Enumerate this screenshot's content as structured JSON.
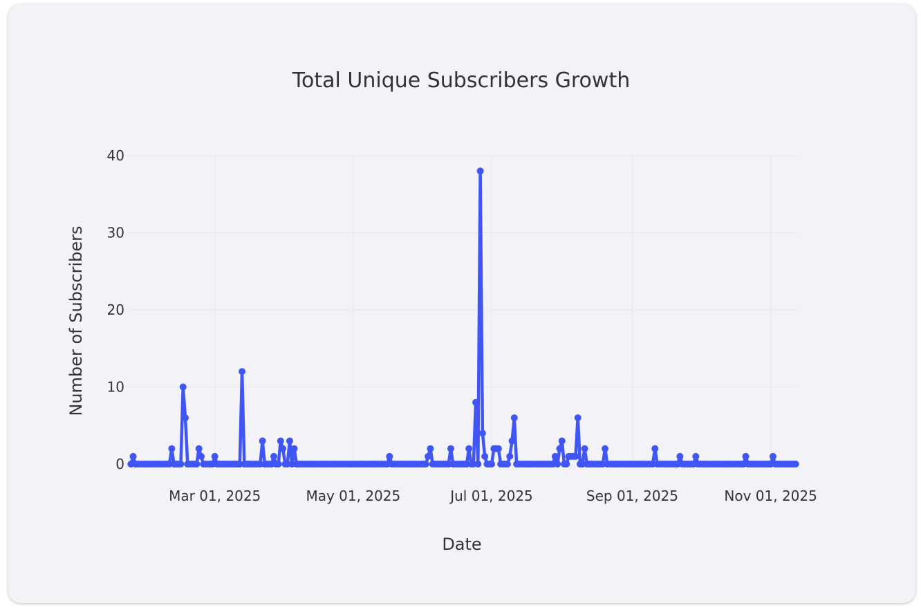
{
  "chart_data": {
    "type": "line",
    "title": "Total Unique Subscribers Growth",
    "xlabel": "Date",
    "ylabel": "Number of Subscribers",
    "x_range": [
      "2025-01-22",
      "2025-11-13"
    ],
    "ylim": [
      0,
      40
    ],
    "y_ticks": [
      0,
      10,
      20,
      30,
      40
    ],
    "x_ticks": [
      {
        "date": "2025-03-01",
        "label": "Mar 01, 2025"
      },
      {
        "date": "2025-05-01",
        "label": "May 01, 2025"
      },
      {
        "date": "2025-07-01",
        "label": "Jul 01, 2025"
      },
      {
        "date": "2025-09-01",
        "label": "Sep 01, 2025"
      },
      {
        "date": "2025-11-01",
        "label": "Nov 01, 2025"
      }
    ],
    "grid": true,
    "color": "#4056f4",
    "start_date": "2025-01-23",
    "end_date": "2025-11-12",
    "points": [
      [
        "2025-01-24",
        1
      ],
      [
        "2025-02-10",
        2
      ],
      [
        "2025-02-15",
        10
      ],
      [
        "2025-02-16",
        6
      ],
      [
        "2025-02-22",
        2
      ],
      [
        "2025-02-23",
        1
      ],
      [
        "2025-03-01",
        1
      ],
      [
        "2025-03-13",
        12
      ],
      [
        "2025-03-22",
        3
      ],
      [
        "2025-03-27",
        1
      ],
      [
        "2025-03-30",
        3
      ],
      [
        "2025-03-31",
        2
      ],
      [
        "2025-04-03",
        3
      ],
      [
        "2025-04-05",
        2
      ],
      [
        "2025-05-17",
        1
      ],
      [
        "2025-06-03",
        1
      ],
      [
        "2025-06-04",
        2
      ],
      [
        "2025-06-13",
        2
      ],
      [
        "2025-06-21",
        2
      ],
      [
        "2025-06-24",
        8
      ],
      [
        "2025-06-26",
        38
      ],
      [
        "2025-06-27",
        4
      ],
      [
        "2025-06-28",
        1
      ],
      [
        "2025-07-02",
        2
      ],
      [
        "2025-07-03",
        2
      ],
      [
        "2025-07-04",
        2
      ],
      [
        "2025-07-09",
        1
      ],
      [
        "2025-07-10",
        3
      ],
      [
        "2025-07-11",
        6
      ],
      [
        "2025-07-29",
        1
      ],
      [
        "2025-07-31",
        2
      ],
      [
        "2025-08-01",
        3
      ],
      [
        "2025-08-04",
        1
      ],
      [
        "2025-08-05",
        1
      ],
      [
        "2025-08-06",
        1
      ],
      [
        "2025-08-07",
        1
      ],
      [
        "2025-08-08",
        6
      ],
      [
        "2025-08-11",
        2
      ],
      [
        "2025-08-20",
        2
      ],
      [
        "2025-09-11",
        2
      ],
      [
        "2025-09-22",
        1
      ],
      [
        "2025-09-29",
        1
      ],
      [
        "2025-10-21",
        1
      ],
      [
        "2025-11-02",
        1
      ]
    ]
  }
}
